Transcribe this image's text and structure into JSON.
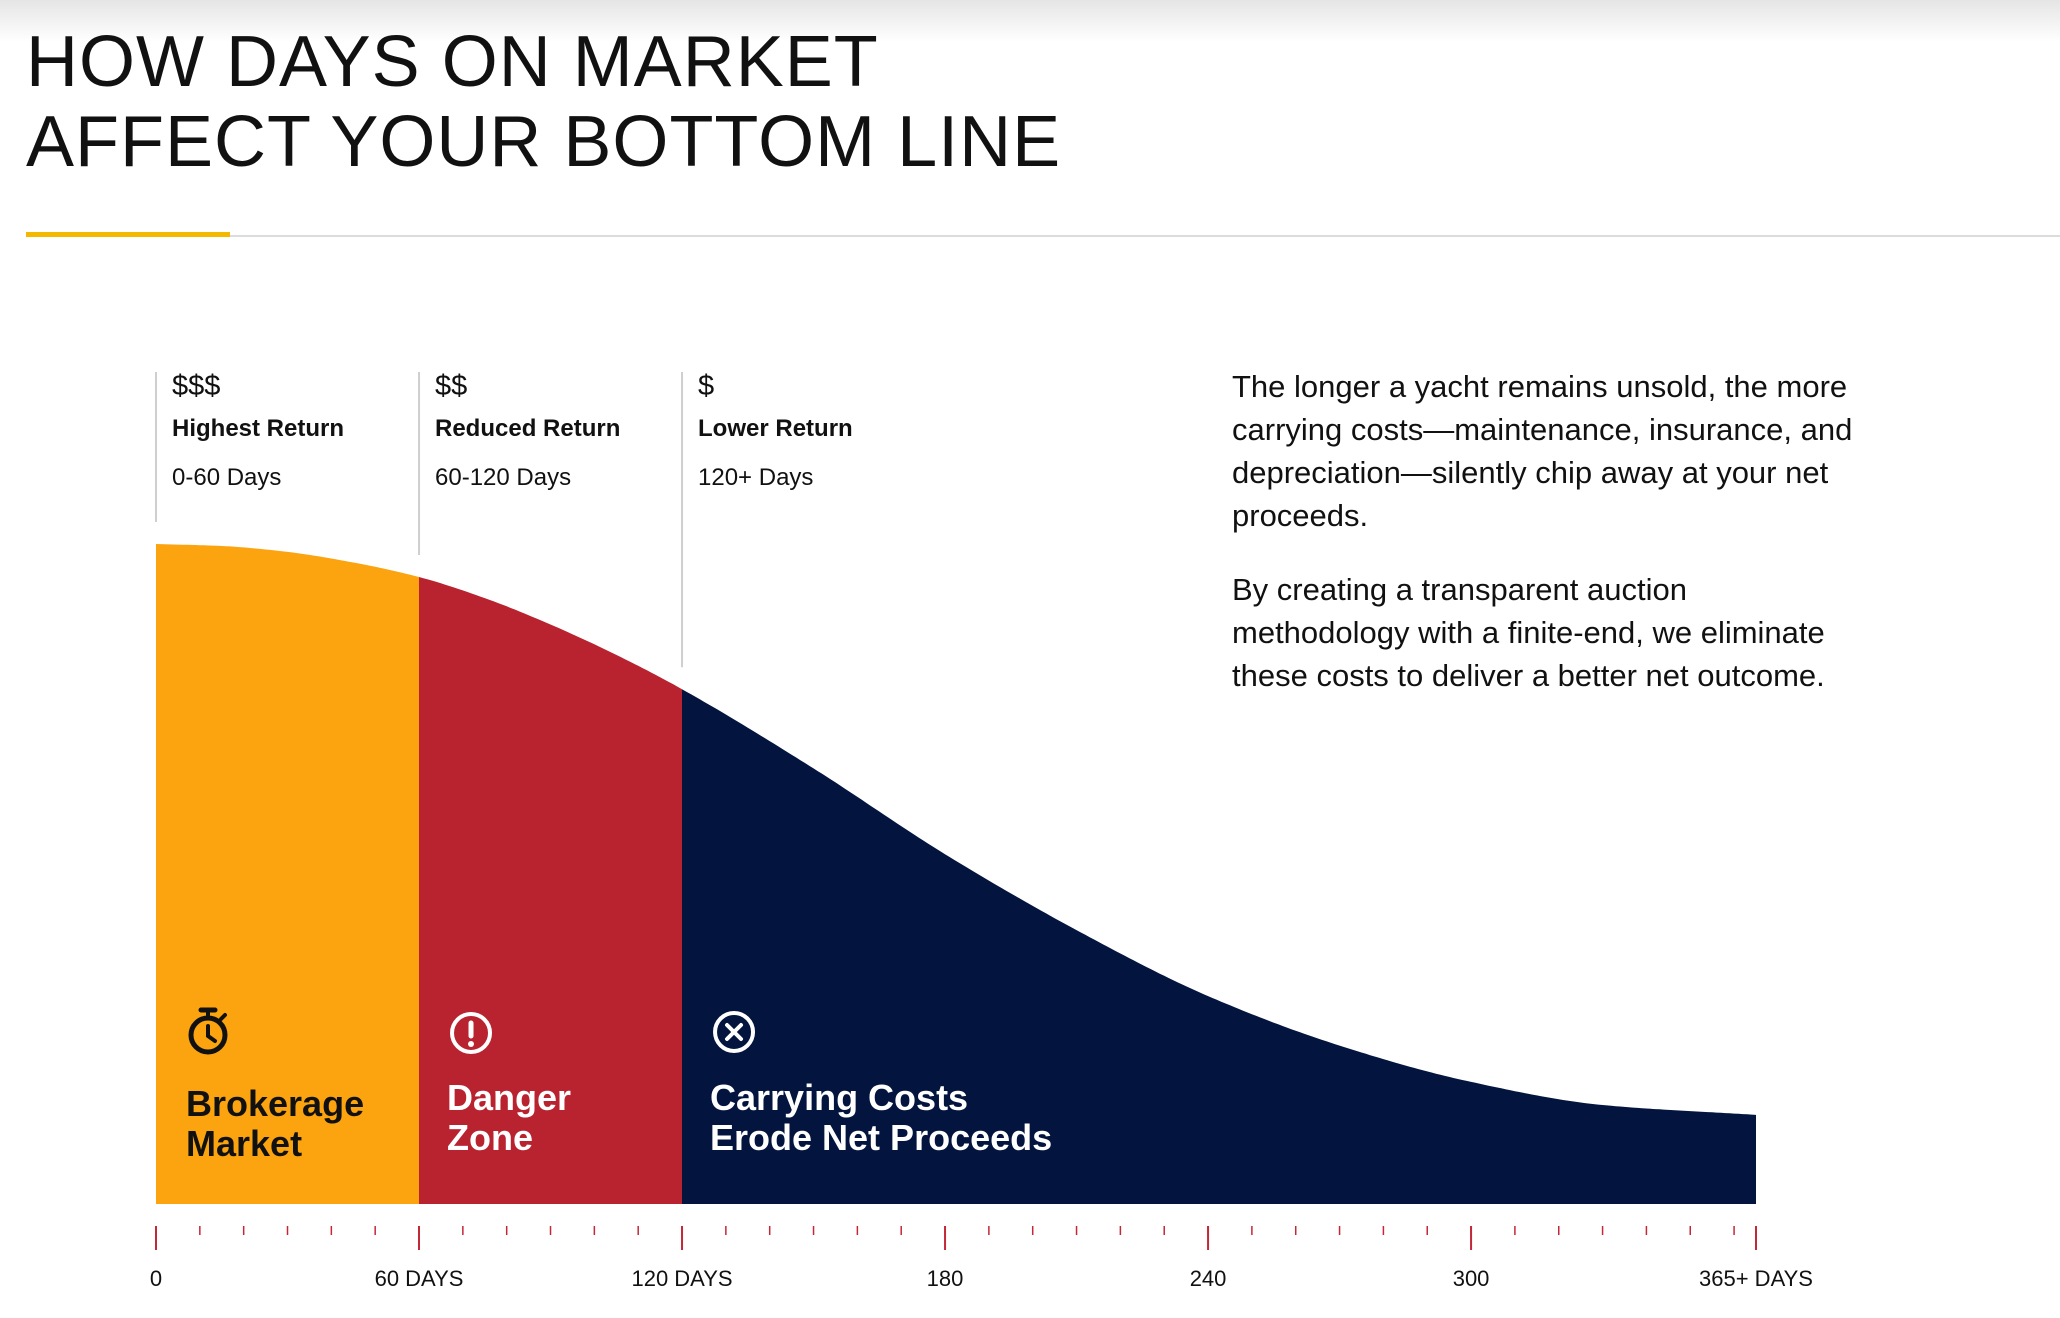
{
  "title": {
    "line1": "HOW DAYS ON MARKET",
    "line2": "AFFECT YOUR BOTTOM LINE"
  },
  "description": {
    "paragraph1": "The longer a yacht remains unsold, the more carrying costs—maintenance, insurance, and depreciation—silently chip away at your net proceeds.",
    "paragraph2": "By creating a transparent auction methodology with a finite-end, we eliminate these costs to deliver a better net outcome."
  },
  "colors": {
    "accent_rule": "#f5b800",
    "brokerage": "#fba40f",
    "danger": "#b92330",
    "carrying": "#03143e",
    "tick": "#c22835"
  },
  "chart_data": {
    "type": "area",
    "xlabel": "",
    "ylabel": "",
    "xlim": [
      0,
      365
    ],
    "x": [
      0,
      15,
      30,
      45,
      60,
      75,
      90,
      105,
      120,
      150,
      180,
      210,
      240,
      270,
      300,
      330,
      365
    ],
    "y": [
      100,
      99.7,
      98.8,
      97.2,
      95,
      91.8,
      87.8,
      83.2,
      78,
      66,
      53,
      41.5,
      31.5,
      24,
      18.5,
      15,
      13.5
    ],
    "ylim": [
      0,
      100
    ],
    "x_ticks": [
      {
        "value": 0,
        "label": "0"
      },
      {
        "value": 60,
        "label": "60 DAYS"
      },
      {
        "value": 120,
        "label": "120 DAYS"
      },
      {
        "value": 180,
        "label": "180"
      },
      {
        "value": 240,
        "label": "240"
      },
      {
        "value": 300,
        "label": "300"
      },
      {
        "value": 365,
        "label": "365+ DAYS"
      }
    ],
    "minor_tick_step": 10,
    "zones": [
      {
        "start": 0,
        "end": 60,
        "color": "#fba40f",
        "symbol": "$$$",
        "return_label": "Highest Return",
        "range_label": "0-60 Days",
        "name_lines": [
          "Brokerage",
          "Market"
        ],
        "icon": "stopwatch-icon",
        "text_color": "#111111"
      },
      {
        "start": 60,
        "end": 120,
        "color": "#b92330",
        "symbol": "$$",
        "return_label": "Reduced Return",
        "range_label": "60-120 Days",
        "name_lines": [
          "Danger",
          "Zone"
        ],
        "icon": "alert-circle-icon",
        "text_color": "#ffffff"
      },
      {
        "start": 120,
        "end": 365,
        "color": "#03143e",
        "symbol": "$",
        "return_label": "Lower Return",
        "range_label": "120+ Days",
        "name_lines": [
          "Carrying Costs",
          "Erode Net Proceeds"
        ],
        "icon": "x-circle-icon",
        "text_color": "#ffffff"
      }
    ]
  }
}
